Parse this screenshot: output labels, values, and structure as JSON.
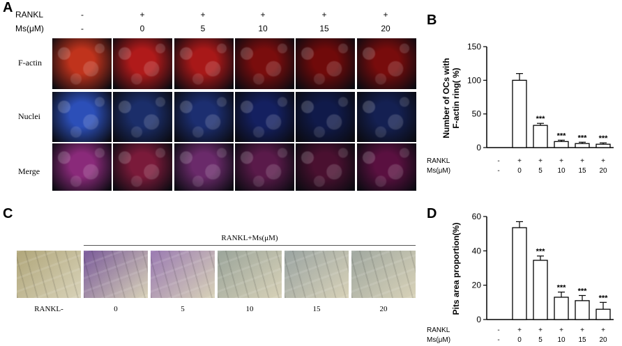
{
  "panel_a": {
    "letter": "A",
    "header_rows": [
      {
        "label": "RANKL",
        "values": [
          "-",
          "+",
          "+",
          "+",
          "+",
          "+"
        ]
      },
      {
        "label": "Ms(μM)",
        "values": [
          "-",
          "0",
          "5",
          "10",
          "15",
          "20"
        ]
      }
    ],
    "row_labels": [
      "F-actin",
      "Nuclei",
      "Merge"
    ],
    "row_colors": {
      "F-actin": [
        "#c0331c",
        "#b01a1a",
        "#a81818",
        "#7a0d0d",
        "#700a0a",
        "#780c0c"
      ],
      "Nuclei": [
        "#2c4fb8",
        "#1b2e6a",
        "#1c2e70",
        "#142060",
        "#101a4a",
        "#142052"
      ],
      "Merge": [
        "#8a2a7a",
        "#7a1a3a",
        "#6a2a6a",
        "#5a1a4a",
        "#4a1030",
        "#5a1040"
      ]
    }
  },
  "panel_b": {
    "letter": "B",
    "chart_data": {
      "type": "bar",
      "categories": [
        "1",
        "2",
        "3",
        "4",
        "5",
        "6"
      ],
      "rankl_row": [
        "-",
        "+",
        "+",
        "+",
        "+",
        "+"
      ],
      "ms_row": [
        "-",
        "0",
        "5",
        "10",
        "15",
        "20"
      ],
      "values": [
        0,
        100,
        33,
        9,
        6,
        5
      ],
      "errors": [
        0,
        10,
        3,
        2,
        2,
        2
      ],
      "significance": [
        "",
        "",
        "***",
        "***",
        "***",
        "***"
      ],
      "ylabel": "Number of OCs with F-actin ring( %)",
      "ylabel_lines": [
        "Number of OCs with",
        "F-actin ring( %)"
      ],
      "ylim": [
        0,
        150
      ],
      "yticks": [
        0,
        50,
        100,
        150
      ],
      "row_labels": [
        "RANKL",
        "Ms(μM)"
      ]
    }
  },
  "panel_c": {
    "letter": "C",
    "group_label": "RANKL+Ms(μM)",
    "captions": [
      "RANKL-",
      "0",
      "5",
      "10",
      "15",
      "20"
    ],
    "tile_colors": [
      "#b0a67a",
      "#7a5a9a",
      "#9a7ab2",
      "#9aa49a",
      "#9aa4a2",
      "#a0a8a0"
    ]
  },
  "panel_d": {
    "letter": "D",
    "chart_data": {
      "type": "bar",
      "categories": [
        "1",
        "2",
        "3",
        "4",
        "5",
        "6"
      ],
      "rankl_row": [
        "-",
        "+",
        "+",
        "+",
        "+",
        "+"
      ],
      "ms_row": [
        "-",
        "0",
        "5",
        "10",
        "15",
        "20"
      ],
      "values": [
        0,
        53.5,
        34.5,
        13,
        11,
        6
      ],
      "errors": [
        0,
        3.5,
        2.5,
        3,
        3,
        4
      ],
      "significance": [
        "",
        "",
        "***",
        "***",
        "***",
        "***"
      ],
      "ylabel": "Pits area proportion(%)",
      "ylim": [
        0,
        60
      ],
      "yticks": [
        0,
        20,
        40,
        60
      ],
      "row_labels": [
        "RANKL",
        "Ms(μM)"
      ]
    }
  }
}
